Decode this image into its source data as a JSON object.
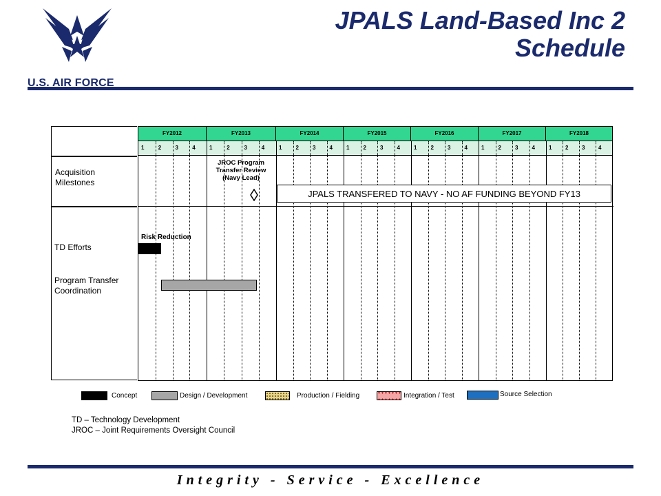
{
  "branding": {
    "logo_text": "U.S. AIR FORCE",
    "color": "#1a2a6c"
  },
  "title": {
    "line1": "JPALS Land-Based Inc 2",
    "line2": "Schedule"
  },
  "schedule": {
    "fiscal_years": [
      "FY2012",
      "FY2013",
      "FY2014",
      "FY2015",
      "FY2016",
      "FY2017",
      "FY2018"
    ],
    "quarters": [
      "1",
      "2",
      "3",
      "4"
    ],
    "header_color": "#33d690",
    "quarter_row_color": "#d9f2e4"
  },
  "rows": {
    "acquisition": "Acquisition Milestones",
    "td": "TD Efforts",
    "transfer": "Program Transfer Coordination"
  },
  "milestone": {
    "label": "JROC Program Transfer Review (Navy Lead)"
  },
  "banner": "JPALS TRANSFERED TO NAVY - NO AF FUNDING BEYOND FY13",
  "bars": {
    "risk_label": "Risk Reduction"
  },
  "legend": {
    "concept": "Concept",
    "design": "Design / Development",
    "production": "Production / Fielding",
    "integration": "Integration / Test",
    "source": "Source Selection"
  },
  "abbreviations": {
    "td": "TD – Technology Development",
    "jroc": "JROC – Joint Requirements Oversight Council"
  },
  "footer": "Integrity - Service - Excellence"
}
